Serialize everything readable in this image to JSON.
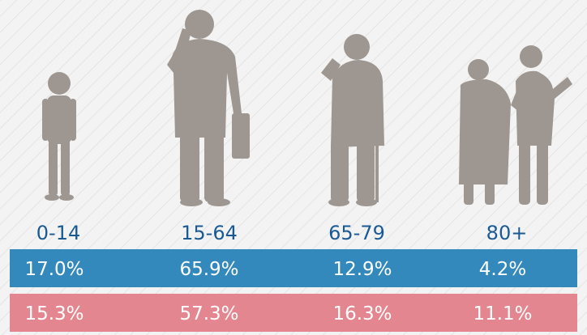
{
  "age_groups": [
    "0-14",
    "15-64",
    "65-79",
    "80+"
  ],
  "rows": [
    {
      "color": "#3389bb",
      "cells": [
        "17.0%",
        "65.9%",
        "12.9%",
        "4.2%"
      ]
    },
    {
      "color": "#e4868f",
      "cells": [
        "15.3%",
        "57.3%",
        "16.3%",
        "11.1%"
      ]
    }
  ]
}
